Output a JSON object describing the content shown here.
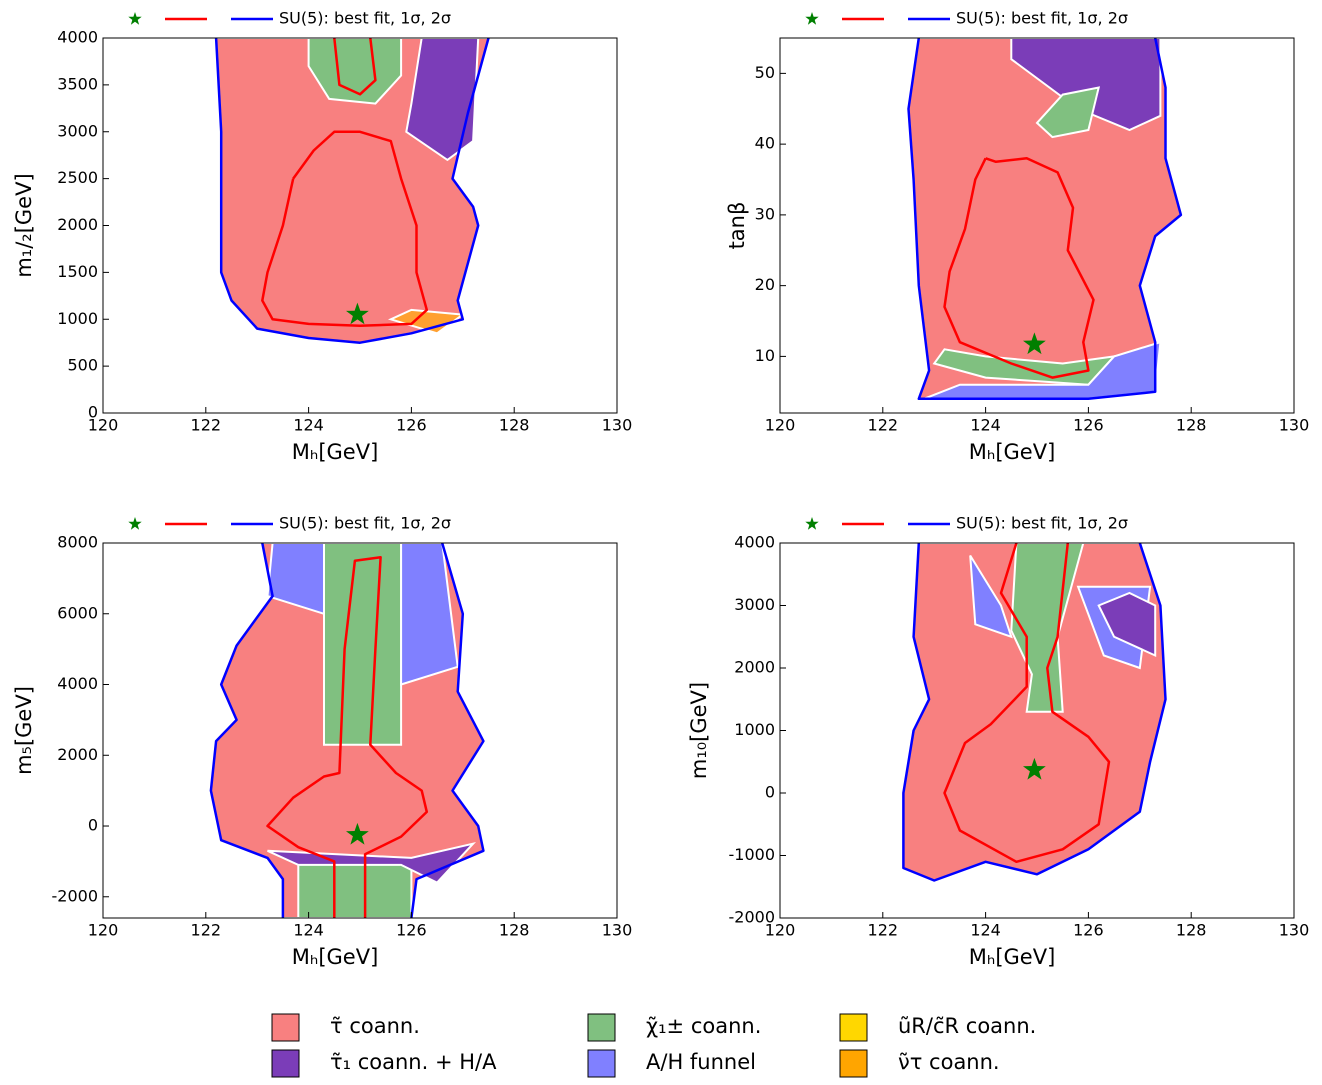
{
  "chart_data": [
    {
      "type": "contour",
      "legend_label": "SU(5): best fit, 1σ, 2σ",
      "x_label": "Mₕ[GeV]",
      "y_label": "m₁/₂[GeV]",
      "xlim": [
        120,
        130
      ],
      "xticks": [
        120,
        122,
        124,
        126,
        128,
        130
      ],
      "ylim": [
        0,
        4000
      ],
      "yticks": [
        0,
        500,
        1000,
        1500,
        2000,
        2500,
        3000,
        3500,
        4000
      ],
      "best_fit": {
        "x": 124.95,
        "y": 1050,
        "color": "#007f00"
      },
      "series": [
        {
          "color": "#ff0000",
          "x": [
            123.7,
            123.5,
            123.2,
            123.1,
            123.3,
            124,
            125,
            126,
            126.3,
            126.1,
            126.1,
            125.8,
            125.6,
            125,
            124.5,
            124.1,
            123.7,
            null,
            124.5,
            124.6,
            125,
            125.3,
            125.2
          ],
          "y": [
            2500,
            2000,
            1500,
            1200,
            1000,
            950,
            930,
            950,
            1100,
            1500,
            2000,
            2500,
            2900,
            3000,
            3000,
            2800,
            2500,
            null,
            4000,
            3500,
            3400,
            3550,
            4000
          ]
        },
        {
          "color": "#0000ff",
          "x": [
            122.2,
            122.3,
            122.3,
            122.5,
            123,
            124,
            125,
            126,
            127,
            126.9,
            127.3,
            127.2,
            126.8,
            127.1,
            127.5
          ],
          "y": [
            4000,
            3000,
            1500,
            1200,
            900,
            800,
            750,
            850,
            1000,
            1200,
            2000,
            2200,
            2500,
            3200,
            4000
          ]
        }
      ],
      "regions": [
        {
          "color": "#f88080",
          "x": [
            122.2,
            122.3,
            122.3,
            122.5,
            123,
            124,
            125,
            126,
            127,
            126.9,
            127.3,
            127.2,
            126.8,
            127.1,
            127.5
          ],
          "y": [
            4000,
            3000,
            1500,
            1200,
            900,
            800,
            750,
            850,
            1000,
            1200,
            2000,
            2200,
            2500,
            3200,
            4000
          ]
        },
        {
          "color": "#80c080",
          "x": [
            124,
            124,
            124.4,
            125.3,
            125.8,
            125.8
          ],
          "y": [
            4000,
            3700,
            3350,
            3300,
            3600,
            4000
          ]
        },
        {
          "color": "#7b3db8",
          "x": [
            126.2,
            126,
            125.9,
            126.7,
            127.2,
            127.3
          ],
          "y": [
            4000,
            3300,
            3000,
            2700,
            2900,
            4000
          ]
        },
        {
          "color": "#ffa030",
          "x": [
            125.6,
            126.5,
            127,
            126
          ],
          "y": [
            1000,
            850,
            1050,
            1100
          ]
        }
      ]
    },
    {
      "type": "contour",
      "legend_label": "SU(5): best fit, 1σ, 2σ",
      "x_label": "Mₕ[GeV]",
      "y_label": "tanβ",
      "xlim": [
        120,
        130
      ],
      "xticks": [
        120,
        122,
        124,
        126,
        128,
        130
      ],
      "ylim": [
        2,
        55
      ],
      "yticks": [
        10,
        20,
        30,
        40,
        50
      ],
      "best_fit": {
        "x": 124.95,
        "y": 11.7,
        "color": "#007f00"
      },
      "series": [
        {
          "color": "#ff0000",
          "x": [
            124,
            123.8,
            123.6,
            123.3,
            123.2,
            123.5,
            124.5,
            125.3,
            126,
            125.9,
            126.1,
            125.6,
            125.7,
            125.4,
            124.8,
            124.2,
            124
          ],
          "y": [
            38,
            35,
            28,
            22,
            17,
            12,
            9,
            7,
            8,
            12,
            18,
            25,
            31,
            36,
            38,
            37.5,
            38
          ]
        },
        {
          "color": "#0000ff",
          "x": [
            122.7,
            122.5,
            122.6,
            122.7,
            122.9,
            122.7,
            124,
            126,
            127.3,
            127.3,
            127,
            127.3,
            127.8,
            127.5,
            127.5,
            127.3
          ],
          "y": [
            55,
            45,
            35,
            20,
            8,
            4,
            4,
            4,
            5,
            12,
            20,
            27,
            30,
            38,
            48,
            55
          ]
        }
      ],
      "regions": [
        {
          "color": "#f88080",
          "x": [
            122.7,
            122.5,
            122.6,
            122.7,
            122.9,
            122.7,
            124,
            126,
            127.3,
            127.3,
            127,
            127.3,
            127.8,
            127.5,
            127.5,
            127.3
          ],
          "y": [
            55,
            45,
            35,
            20,
            8,
            4,
            4,
            4,
            5,
            12,
            20,
            27,
            30,
            38,
            48,
            55
          ]
        },
        {
          "color": "#7b3db8",
          "x": [
            124.5,
            124.5,
            125.8,
            126.8,
            127.4,
            127.4
          ],
          "y": [
            55,
            52,
            45,
            42,
            44,
            55
          ]
        },
        {
          "color": "#80c080",
          "x": [
            125,
            125.5,
            126.2,
            126,
            125.3
          ],
          "y": [
            43,
            47,
            48,
            42,
            41
          ]
        },
        {
          "color": "#80c080",
          "x": [
            123,
            124,
            126,
            126.5,
            125.5,
            124,
            123.2
          ],
          "y": [
            9,
            7,
            6,
            10,
            9,
            10,
            11
          ]
        },
        {
          "color": "#8080ff",
          "x": [
            122.8,
            126,
            127.3,
            127.4,
            126.5,
            126,
            123.5
          ],
          "y": [
            4,
            4,
            5,
            12,
            10,
            6,
            6
          ]
        }
      ]
    },
    {
      "type": "contour",
      "legend_label": "SU(5): best fit, 1σ, 2σ",
      "x_label": "Mₕ[GeV]",
      "y_label": "m₅[GeV]",
      "xlim": [
        120,
        130
      ],
      "xticks": [
        120,
        122,
        124,
        126,
        128,
        130
      ],
      "ylim": [
        -2600,
        8000
      ],
      "yticks": [
        -2000,
        0,
        2000,
        4000,
        6000,
        8000
      ],
      "best_fit": {
        "x": 124.95,
        "y": -250,
        "color": "#007f00"
      },
      "series": [
        {
          "color": "#ff0000",
          "x": [
            124.5,
            124.5,
            123.8,
            123.2,
            123.7,
            124.3,
            124.6,
            124.7,
            124.9,
            125.4,
            125.3,
            125.2,
            125.7,
            126.2,
            126.3,
            125.8,
            125.1,
            125.1
          ],
          "y": [
            -2600,
            -1000,
            -600,
            0,
            800,
            1400,
            1500,
            5000,
            7500,
            7600,
            5000,
            2300,
            1500,
            1000,
            400,
            -300,
            -800,
            -2600
          ]
        },
        {
          "color": "#0000ff",
          "x": [
            123.1,
            123.3,
            122.6,
            122.3,
            122.6,
            122.2,
            122.1,
            122.3,
            123.2,
            123.5,
            123.5,
            null,
            126,
            126.1,
            127.4,
            127.3,
            126.8,
            127.4,
            126.9,
            127,
            126.6
          ],
          "y": [
            8000,
            6500,
            5100,
            4000,
            3000,
            2400,
            1000,
            -400,
            -900,
            -1500,
            -2600,
            null,
            -2600,
            -1500,
            -700,
            0,
            1000,
            2400,
            3800,
            6000,
            8000
          ]
        }
      ],
      "regions": [
        {
          "color": "#f88080",
          "x": [
            123.1,
            123.3,
            122.6,
            122.3,
            122.6,
            122.2,
            122.1,
            122.3,
            123.2,
            123.5,
            123.5,
            126,
            126.1,
            127.4,
            127.3,
            126.8,
            127.4,
            126.9,
            127,
            126.6
          ],
          "y": [
            8000,
            6500,
            5100,
            4000,
            3000,
            2400,
            1000,
            -400,
            -900,
            -1500,
            -2600,
            -2600,
            -1500,
            -700,
            0,
            1000,
            2400,
            3800,
            6000,
            8000
          ]
        },
        {
          "color": "#80c080",
          "x": [
            124.3,
            124.3,
            125.8,
            125.8
          ],
          "y": [
            8000,
            2300,
            2300,
            8000
          ]
        },
        {
          "color": "#80c080",
          "x": [
            123.8,
            126,
            126,
            123.8
          ],
          "y": [
            -1000,
            -1000,
            -2600,
            -2600
          ]
        },
        {
          "color": "#7b3db8",
          "x": [
            123.2,
            126,
            127.2,
            126.5,
            125.8,
            123.8
          ],
          "y": [
            -700,
            -900,
            -500,
            -1600,
            -1100,
            -1100
          ]
        },
        {
          "color": "#8080ff",
          "x": [
            123.3,
            123.2,
            124.3,
            124.3
          ],
          "y": [
            8000,
            6500,
            6000,
            8000
          ]
        },
        {
          "color": "#8080ff",
          "x": [
            125.8,
            126.6,
            126.9,
            125.8
          ],
          "y": [
            8000,
            8000,
            4500,
            4000
          ]
        }
      ]
    },
    {
      "type": "contour",
      "legend_label": "SU(5): best fit, 1σ, 2σ",
      "x_label": "Mₕ[GeV]",
      "y_label": "m₁₀[GeV]",
      "xlim": [
        120,
        130
      ],
      "xticks": [
        120,
        122,
        124,
        126,
        128,
        130
      ],
      "ylim": [
        -2000,
        4000
      ],
      "yticks": [
        -2000,
        -1000,
        0,
        1000,
        2000,
        3000,
        4000
      ],
      "best_fit": {
        "x": 124.95,
        "y": 370,
        "color": "#007f00"
      },
      "series": [
        {
          "color": "#ff0000",
          "x": [
            124.6,
            124.3,
            124.8,
            124.8,
            124.1,
            123.6,
            123.2,
            123.5,
            124.6,
            125.5,
            126.2,
            126.4,
            126,
            125.3,
            125.2,
            125.4,
            125.6
          ],
          "y": [
            4000,
            3200,
            2500,
            1700,
            1100,
            800,
            0,
            -600,
            -1100,
            -900,
            -500,
            500,
            900,
            1300,
            2000,
            2500,
            4000
          ]
        },
        {
          "color": "#0000ff",
          "x": [
            122.7,
            122.6,
            122.9,
            122.6,
            122.4,
            122.4,
            123,
            124,
            125,
            126,
            127,
            127.2,
            127.5,
            127.4,
            127
          ],
          "y": [
            4000,
            2500,
            1500,
            1000,
            0,
            -1200,
            -1400,
            -1100,
            -1300,
            -900,
            -300,
            500,
            1500,
            3000,
            4000
          ]
        }
      ],
      "regions": [
        {
          "color": "#f88080",
          "x": [
            122.7,
            122.6,
            122.9,
            122.6,
            122.4,
            122.4,
            123,
            124,
            125,
            126,
            127,
            127.2,
            127.5,
            127.4,
            127
          ],
          "y": [
            4000,
            2500,
            1500,
            1000,
            0,
            -1200,
            -1400,
            -1100,
            -1300,
            -900,
            -300,
            500,
            1500,
            3000,
            4000
          ]
        },
        {
          "color": "#80c080",
          "x": [
            124.6,
            124.5,
            124.9,
            124.8,
            125.5,
            125.4,
            125.9
          ],
          "y": [
            4000,
            2600,
            1900,
            1300,
            1300,
            2500,
            4000
          ]
        },
        {
          "color": "#8080ff",
          "x": [
            123.7,
            124.3,
            124.5,
            123.8
          ],
          "y": [
            3800,
            3000,
            2500,
            2700
          ]
        },
        {
          "color": "#8080ff",
          "x": [
            125.8,
            126.3,
            127,
            127.2
          ],
          "y": [
            3300,
            2200,
            2000,
            3300
          ]
        },
        {
          "color": "#7b3db8",
          "x": [
            126.2,
            126.5,
            127.3,
            127.3,
            126.8
          ],
          "y": [
            3000,
            2500,
            2200,
            3000,
            3200
          ]
        }
      ]
    }
  ],
  "region_legend": [
    {
      "label": "τ̃ coann.",
      "color": "#f88080"
    },
    {
      "label": "τ̃₁ coann. + H/A",
      "color": "#7b3db8"
    },
    {
      "label": "χ̃₁± coann.",
      "color": "#80c080"
    },
    {
      "label": "A/H funnel",
      "color": "#8080ff"
    },
    {
      "label": "ũR/c̃R coann.",
      "color": "#ffd700"
    },
    {
      "label": "ν̃τ coann.",
      "color": "#ffa500"
    }
  ]
}
